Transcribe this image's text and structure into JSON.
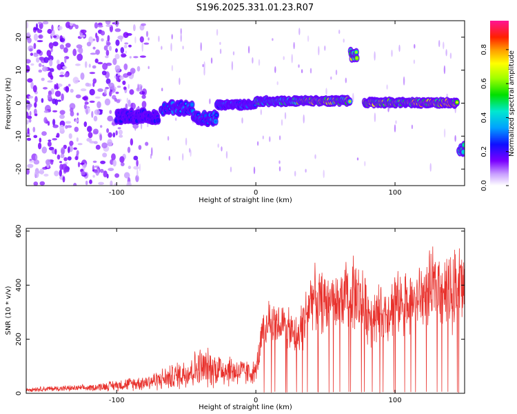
{
  "title": "S196.2025.331.01.23.R07",
  "chart_data": [
    {
      "type": "heatmap",
      "xlabel": "Height of straight line (km)",
      "ylabel": "Frequency (Hz)",
      "xlim": [
        -165,
        150
      ],
      "ylim": [
        -25,
        25
      ],
      "xticks": [
        -100,
        0,
        100
      ],
      "yticks": [
        -20,
        -10,
        0,
        10,
        20
      ],
      "colorbar": {
        "label": "Normalized spectral amplitude",
        "range": [
          0,
          0.97
        ],
        "ticks": [
          0.0,
          0.2,
          0.4,
          0.6,
          0.8
        ],
        "tick_labels": [
          "0.0",
          "0.2",
          "0.4",
          "0.6",
          "0.8"
        ]
      },
      "ridges": [
        {
          "x0": -100,
          "x1": -70,
          "freq": -4,
          "amp": 0.25
        },
        {
          "x0": -68,
          "x1": -45,
          "freq": -1.5,
          "amp": 0.35
        },
        {
          "x0": -45,
          "x1": -28,
          "freq": -4.5,
          "amp": 0.35
        },
        {
          "x0": -28,
          "x1": 0,
          "freq": -0.5,
          "amp": 0.35
        },
        {
          "x0": 0,
          "x1": 30,
          "freq": 0.6,
          "amp": 0.55
        },
        {
          "x0": 30,
          "x1": 68,
          "freq": 0.7,
          "amp": 0.75
        },
        {
          "x0": 68,
          "x1": 73,
          "freq": 15,
          "amp": 0.7
        },
        {
          "x0": 78,
          "x1": 110,
          "freq": 0.2,
          "amp": 0.75
        },
        {
          "x0": 110,
          "x1": 145,
          "freq": 0.1,
          "amp": 0.85
        },
        {
          "x0": 146,
          "x1": 150,
          "freq": -14,
          "amp": 0.5
        }
      ],
      "noise_region_x": [
        -165,
        -100
      ]
    },
    {
      "type": "line",
      "xlabel": "Height of straight line (km)",
      "ylabel": "SNR (10 * v/v)",
      "xlim": [
        -165,
        150
      ],
      "ylim": [
        0,
        610
      ],
      "xticks": [
        -100,
        0,
        100
      ],
      "yticks": [
        0,
        200,
        400,
        600
      ],
      "series": [
        {
          "name": "SNR",
          "color": "#e8312c",
          "envelope_x": [
            -165,
            -120,
            -100,
            -80,
            -60,
            -40,
            -25,
            -5,
            0,
            5,
            10,
            20,
            30,
            40,
            50,
            60,
            70,
            80,
            90,
            100,
            110,
            120,
            130,
            140,
            145,
            150
          ],
          "envelope_mean": [
            15,
            20,
            30,
            40,
            60,
            95,
            90,
            75,
            80,
            220,
            270,
            250,
            200,
            360,
            330,
            340,
            380,
            300,
            290,
            330,
            340,
            360,
            400,
            380,
            420,
            390
          ],
          "envelope_amp": [
            10,
            12,
            22,
            30,
            50,
            80,
            70,
            50,
            40,
            90,
            80,
            80,
            90,
            120,
            120,
            120,
            150,
            120,
            120,
            120,
            120,
            140,
            150,
            160,
            180,
            150
          ]
        }
      ]
    }
  ]
}
